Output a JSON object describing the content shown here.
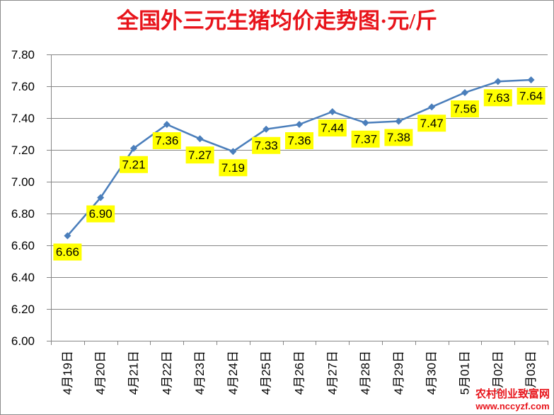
{
  "chart_data": {
    "type": "line",
    "title": "全国外三元生猪均价走势图·元/斤",
    "categories": [
      "4月19日",
      "4月20日",
      "4月21日",
      "4月22日",
      "4月23日",
      "4月24日",
      "4月25日",
      "4月26日",
      "4月27日",
      "4月28日",
      "4月29日",
      "4月30日",
      "5月01日",
      "5月02日",
      "5月03日"
    ],
    "series": [
      {
        "values": [
          6.66,
          6.9,
          7.21,
          7.36,
          7.27,
          7.19,
          7.33,
          7.36,
          7.44,
          7.37,
          7.38,
          7.47,
          7.56,
          7.63,
          7.64
        ],
        "color": "#4a7ebb"
      }
    ],
    "ylim": [
      6.0,
      7.8
    ],
    "yticks": [
      "6.00",
      "6.20",
      "6.40",
      "6.60",
      "6.80",
      "7.00",
      "7.20",
      "7.40",
      "7.60",
      "7.80"
    ],
    "grid": true,
    "data_labels": true,
    "label_background": "#ffff00",
    "title_color": "#e8141b",
    "grid_color": "#868686"
  },
  "watermark": {
    "line1": "农村创业致富网",
    "line2": "www.nccyzf.com",
    "color": "#e8141b"
  }
}
